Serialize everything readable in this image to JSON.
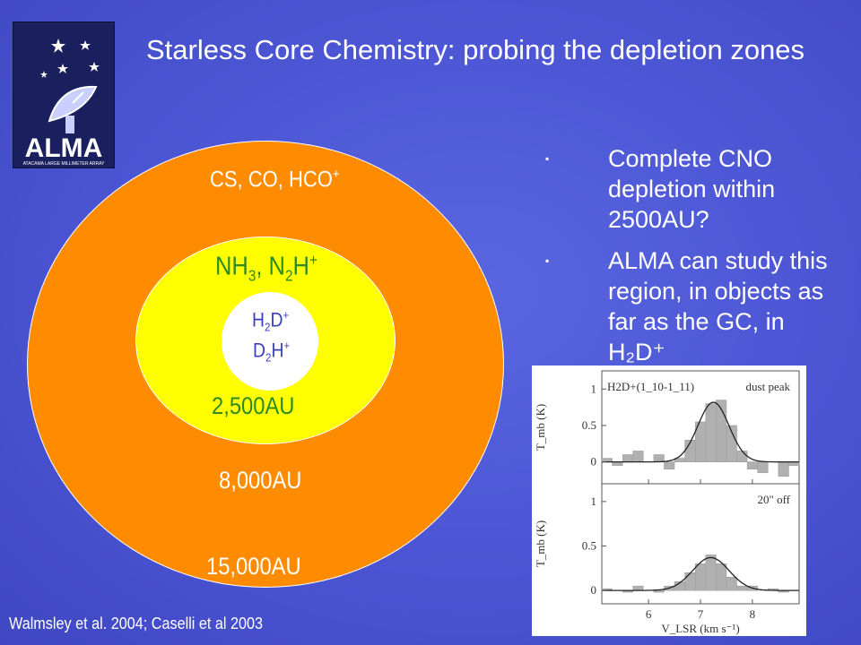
{
  "slide": {
    "title": "Starless Core Chemistry: probing the depletion zones",
    "logo": {
      "wordmark": "ALMA",
      "tagline": "ATACAMA LARGE MILLIMETER ARRAY"
    },
    "bullets": [
      {
        "marker": "▪",
        "text": "Complete CNO depletion within 2500AU?"
      },
      {
        "marker": "▪",
        "text": "ALMA can study this region, in objects as far as the GC, in H₂D⁺"
      }
    ],
    "reference": "Walmsley et al. 2004; Caselli et al 2003"
  },
  "diagram": {
    "outer_label": "CS, CO, HCO+",
    "middle_label": "NH3, N2H+",
    "inner_label_1": "H2D+",
    "inner_label_2": "D2H+",
    "radius_inner": "2,500AU",
    "radius_middle": "8,000AU",
    "radius_outer": "15,000AU",
    "colors": {
      "outer": "#ff8c00",
      "middle": "#ffff00",
      "inner": "#ffffff"
    }
  },
  "chart_data": {
    "type": "bar",
    "panels": [
      {
        "annotation": "dust peak",
        "line_label": "H2D+(1_10-1_11)",
        "ylabel": "T_mb (K)",
        "yticks": [
          "0",
          "0.5",
          "1"
        ],
        "ylim": [
          -0.3,
          1.25
        ],
        "x": [
          5.2,
          5.4,
          5.6,
          5.8,
          6.0,
          6.2,
          6.4,
          6.6,
          6.8,
          7.0,
          7.2,
          7.4,
          7.6,
          7.8,
          8.0,
          8.2,
          8.4,
          8.6,
          8.8
        ],
        "values": [
          0.05,
          -0.05,
          0.1,
          0.15,
          0.0,
          0.1,
          -0.1,
          0.05,
          0.3,
          0.55,
          0.8,
          0.85,
          0.5,
          0.15,
          -0.1,
          -0.15,
          0.0,
          -0.2,
          -0.05
        ],
        "fit_center": 7.25,
        "fit_peak": 0.82,
        "fit_sigma": 0.3
      },
      {
        "annotation": "20\" off",
        "line_label": "",
        "ylabel": "T_mb (K)",
        "yticks": [
          "0",
          "0.5",
          "1"
        ],
        "ylim": [
          -0.15,
          1.2
        ],
        "x": [
          5.2,
          5.4,
          5.6,
          5.8,
          6.0,
          6.2,
          6.4,
          6.6,
          6.8,
          7.0,
          7.2,
          7.4,
          7.6,
          7.8,
          8.0,
          8.2,
          8.4,
          8.6,
          8.8
        ],
        "values": [
          0.02,
          0.0,
          -0.02,
          0.05,
          0.0,
          -0.02,
          0.05,
          0.1,
          0.2,
          0.3,
          0.4,
          0.3,
          0.15,
          0.05,
          0.05,
          0.0,
          0.02,
          -0.02,
          0.0
        ],
        "fit_center": 7.2,
        "fit_peak": 0.37,
        "fit_sigma": 0.35
      }
    ],
    "xlim": [
      5.1,
      8.9
    ],
    "xticks": [
      "6",
      "7",
      "8"
    ],
    "xlabel": "V_LSR (km s⁻¹)"
  }
}
